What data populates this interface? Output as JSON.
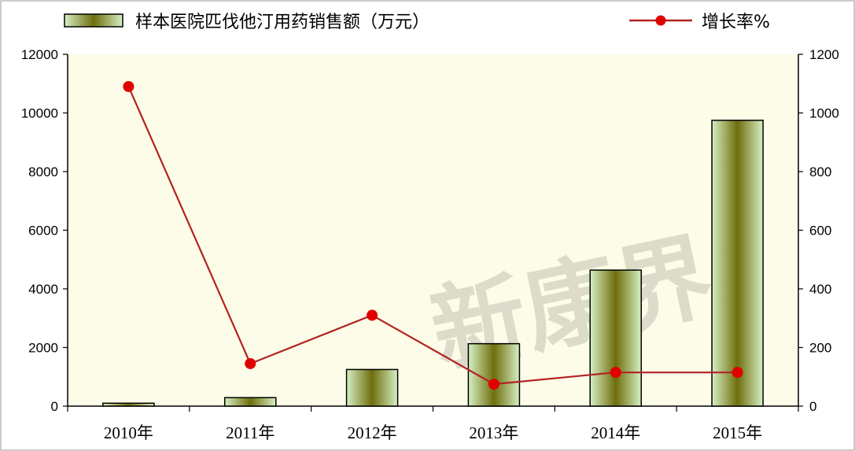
{
  "chart_data": {
    "type": "bar",
    "categories": [
      "2010年",
      "2011年",
      "2012年",
      "2013年",
      "2014年",
      "2015年"
    ],
    "series": [
      {
        "name": "样本医院匹伐他汀用药销售额（万元）",
        "type": "bar",
        "axis": "left",
        "values": [
          100,
          290,
          1250,
          2130,
          4640,
          9750
        ],
        "color": "#d9f2c8"
      },
      {
        "name": "增长率%",
        "type": "line",
        "axis": "right",
        "values": [
          1090,
          145,
          310,
          75,
          115,
          115
        ],
        "color": "#e00000",
        "line_color": "#b22222"
      }
    ],
    "left_axis": {
      "ylim": [
        0,
        12000
      ],
      "ticks": [
        "0",
        "2000",
        "4000",
        "6000",
        "8000",
        "10000",
        "12000"
      ]
    },
    "right_axis": {
      "ylim": [
        0,
        1200
      ],
      "ticks": [
        "0",
        "200",
        "400",
        "600",
        "800",
        "1000",
        "1200"
      ]
    },
    "grid": false,
    "legend_position": "top",
    "plot_background": "#fdfce8",
    "watermark": "新康界"
  }
}
